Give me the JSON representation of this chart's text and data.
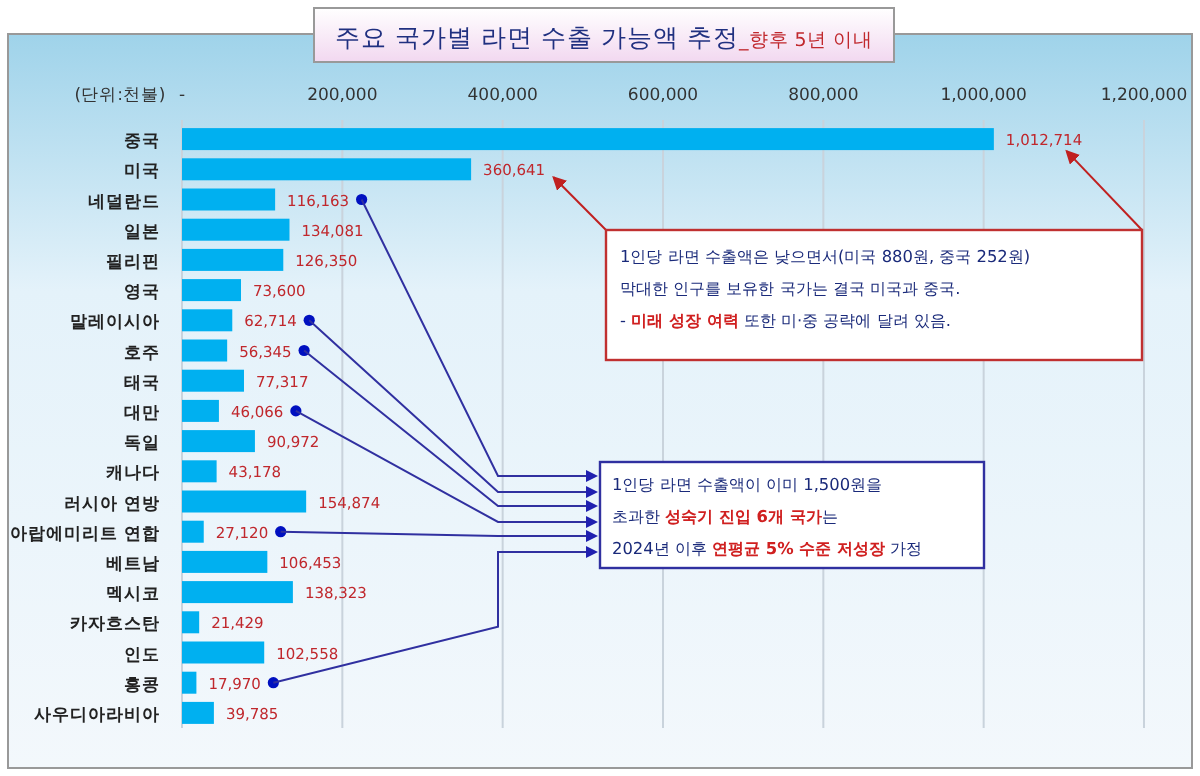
{
  "chart_data": {
    "type": "bar",
    "orientation": "horizontal",
    "title": "주요 국가별 라면 수출 가능액 추정",
    "subtitle": "_향후 5년 이내",
    "categories": [
      "중국",
      "미국",
      "네덜란드",
      "일본",
      "필리핀",
      "영국",
      "말레이시아",
      "호주",
      "태국",
      "대만",
      "독일",
      "캐나다",
      "러시아 연방",
      "아랍에미리트 연합",
      "베트남",
      "멕시코",
      "카자흐스탄",
      "인도",
      "홍콩",
      "사우디아라비아"
    ],
    "values": [
      1012714,
      360641,
      116163,
      134081,
      126350,
      73600,
      62714,
      56345,
      77317,
      46066,
      90972,
      43178,
      154874,
      27120,
      106453,
      138323,
      21429,
      102558,
      17970,
      39785
    ],
    "color": "#00b0f0",
    "value_labels": [
      "1,012,714",
      "360,641",
      "116,163",
      "134,081",
      "126,350",
      "73,600",
      "62,714",
      "56,345",
      "77,317",
      "46,066",
      "90,972",
      "43,178",
      "154,874",
      "27,120",
      "106,453",
      "138,323",
      "21,429",
      "102,558",
      "17,970",
      "39,785"
    ],
    "xlim": [
      0,
      1200000
    ],
    "xticks": [
      {
        "value": 0,
        "label": "-"
      },
      {
        "value": 200000,
        "label": "200,000"
      },
      {
        "value": 400000,
        "label": "400,000"
      },
      {
        "value": 600000,
        "label": "600,000"
      },
      {
        "value": 800000,
        "label": "800,000"
      },
      {
        "value": 1000000,
        "label": "1,000,000"
      },
      {
        "value": 1200000,
        "label": "1,200,000"
      }
    ],
    "grid": "x",
    "annotations": [
      "(단위:천불)",
      "1인당 라면 수출액은 낮으면서(미국 880원, 중국 252원)",
      "막대한 인구를 보유한 국가는 결국 미국과 중국.",
      "- **미래 성장 여력** 또한 미·중 공략에 달려 있음.",
      "1인당 라면 수출액이 이미 1,500원을",
      "초과한 **성숙기 진입 6개 국가**는",
      "2024년 이후 **연평균 5% 수준 저성장** 가정"
    ]
  }
}
